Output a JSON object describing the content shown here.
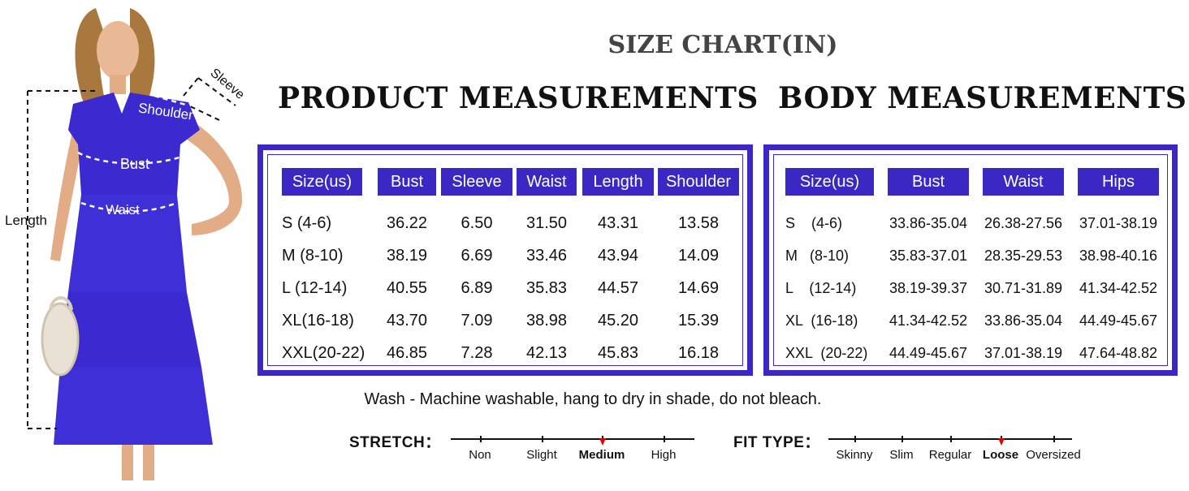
{
  "main_title": "SIZE CHART(IN)",
  "product": {
    "title": "PRODUCT MEASUREMENTS",
    "headers": [
      "Size(us)",
      "Bust",
      "Sleeve",
      "Waist",
      "Length",
      "Shoulder"
    ],
    "rows": [
      [
        "S (4-6)",
        "36.22",
        "6.50",
        "31.50",
        "43.31",
        "13.58"
      ],
      [
        "M (8-10)",
        "38.19",
        "6.69",
        "33.46",
        "43.94",
        "14.09"
      ],
      [
        "L (12-14)",
        "40.55",
        "6.89",
        "35.83",
        "44.57",
        "14.69"
      ],
      [
        "XL(16-18)",
        "43.70",
        "7.09",
        "38.98",
        "45.20",
        "15.39"
      ],
      [
        "XXL(20-22)",
        "46.85",
        "7.28",
        "42.13",
        "45.83",
        "16.18"
      ]
    ]
  },
  "body": {
    "title": "BODY MEASUREMENTS",
    "headers": [
      "Size(us)",
      "Bust",
      "Waist",
      "Hips"
    ],
    "rows": [
      [
        "S    (4-6)",
        "33.86-35.04",
        "26.38-27.56",
        "37.01-38.19"
      ],
      [
        "M   (8-10)",
        "35.83-37.01",
        "28.35-29.53",
        "38.98-40.16"
      ],
      [
        "L    (12-14)",
        "38.19-39.37",
        "30.71-31.89",
        "41.34-42.52"
      ],
      [
        "XL  (16-18)",
        "41.34-42.52",
        "33.86-35.04",
        "44.49-45.67"
      ],
      [
        "XXL  (20-22)",
        "44.49-45.67",
        "37.01-38.19",
        "47.64-48.82"
      ]
    ]
  },
  "wash": "Wash - Machine washable, hang to dry in shade, do not bleach.",
  "stretch": {
    "label": "STRETCH：",
    "options": [
      "Non",
      "Slight",
      "Medium",
      "High"
    ],
    "selected": "Medium"
  },
  "fit": {
    "label": "FIT TYPE：",
    "options": [
      "Skinny",
      "Slim",
      "Regular",
      "Loose",
      "Oversized"
    ],
    "selected": "Loose"
  },
  "diagram": {
    "labels": {
      "sleeve": "Sleeve",
      "shoulder": "Shoulder",
      "bust": "Bust",
      "waist": "Waist",
      "length": "Length"
    }
  },
  "colors": {
    "accent": "#3a27c4",
    "dress": "#3a2ad0",
    "marker": "#dd0000"
  }
}
